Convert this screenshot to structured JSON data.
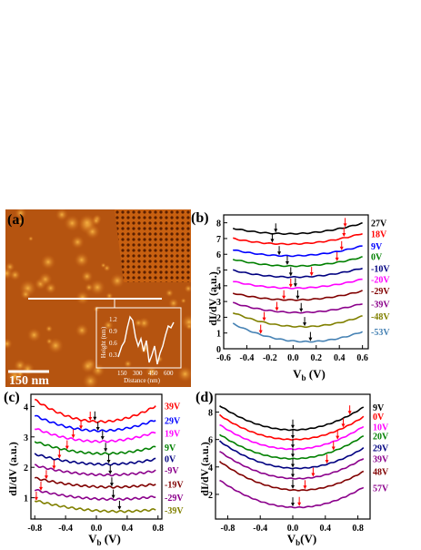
{
  "figure": {
    "panel_a": {
      "label": "(a)",
      "scale_bar": "150 nm",
      "inset_ylabel": "Height (nm)",
      "inset_xlabel": "Distance (nm)",
      "inset_yticks": [
        "1.2",
        "0.9",
        "0.6",
        "0.3"
      ],
      "inset_xticks": [
        "150",
        "300",
        "450",
        "600"
      ]
    },
    "panel_b": {
      "label": "(b)",
      "ylabel": "dI/dV (a.u.)",
      "xlabel": "V",
      "xlabel_sub": "b",
      "xlabel_unit": " (V)",
      "xticks": [
        "-0.6",
        "-0.4",
        "-0.2",
        "0.0",
        "0.2",
        "0.4",
        "0.6"
      ],
      "yticks": [
        "0",
        "1",
        "2",
        "3",
        "4",
        "5",
        "6",
        "7",
        "8"
      ]
    },
    "panel_c": {
      "label": "(c)",
      "ylabel": "dI/dV (a.u.)",
      "xlabel": "V",
      "xlabel_sub": "b",
      "xlabel_unit": " (V)",
      "xticks": [
        "-0.8",
        "-0.4",
        "0.0",
        "0.4",
        "0.8"
      ],
      "yticks": [
        "1",
        "2",
        "3",
        "4"
      ]
    },
    "panel_d": {
      "label": "(d)",
      "ylabel": "dI/dV (a.u.)",
      "xlabel": "V",
      "xlabel_sub": "b",
      "xlabel_unit": "(V)",
      "xticks": [
        "-0.8",
        "-0.4",
        "0.0",
        "0.4",
        "0.8"
      ],
      "yticks": [
        "2",
        "4",
        "6",
        "8"
      ]
    }
  },
  "chart_data": [
    {
      "panel": "b",
      "type": "line",
      "xlim": [
        -0.6,
        0.65
      ],
      "ylim": [
        0,
        8.5
      ],
      "series": [
        {
          "name": "27V",
          "color": "#000000",
          "offset": 7.3,
          "curv": 1.6,
          "x0": -0.05,
          "black": -0.15,
          "red": 0.45
        },
        {
          "name": "18V",
          "color": "#ff0000",
          "offset": 6.65,
          "curv": 1.6,
          "x0": -0.05,
          "black": -0.18,
          "red": 0.44
        },
        {
          "name": "9V",
          "color": "#0000ff",
          "offset": 5.9,
          "curv": 1.6,
          "x0": -0.03,
          "black": -0.12,
          "red": 0.42
        },
        {
          "name": "0V",
          "color": "#008000",
          "offset": 5.25,
          "curv": 1.6,
          "x0": 0.0,
          "black": -0.05,
          "red": 0.38
        },
        {
          "name": "-10V",
          "color": "#000080",
          "offset": 4.55,
          "curv": 1.6,
          "x0": 0.0,
          "black": -0.02,
          "red": 0.16
        },
        {
          "name": "-20V",
          "color": "#ff00ff",
          "offset": 3.85,
          "curv": 1.6,
          "x0": 0.0,
          "black": 0.02,
          "red": -0.02
        },
        {
          "name": "-29V",
          "color": "#800000",
          "offset": 3.1,
          "curv": 1.6,
          "x0": 0.0,
          "black": 0.04,
          "red": -0.08
        },
        {
          "name": "-39V",
          "color": "#8b008b",
          "offset": 2.3,
          "curv": 1.9,
          "x0": 0.05,
          "black": 0.07,
          "red": -0.14
        },
        {
          "name": "-48V",
          "color": "#808000",
          "offset": 1.4,
          "curv": 2.5,
          "x0": 0.08,
          "black": 0.1,
          "red": -0.25
        },
        {
          "name": "-53V",
          "color": "#4682b4",
          "offset": 0.45,
          "curv": 2.8,
          "x0": 0.12,
          "black": 0.15,
          "red": -0.28
        }
      ]
    },
    {
      "panel": "c",
      "type": "line",
      "xlim": [
        -0.85,
        0.85
      ],
      "ylim": [
        0.3,
        4.4
      ],
      "series": [
        {
          "name": "39V",
          "color": "#ff0000",
          "offset": 3.5,
          "curv": 1.0,
          "x0": 0.05,
          "black": -0.02,
          "red": -0.08
        },
        {
          "name": "29V",
          "color": "#0000ff",
          "offset": 3.2,
          "curv": 0.7,
          "x0": 0.05,
          "black": 0.02,
          "red": -0.2
        },
        {
          "name": "19V",
          "color": "#ff00ff",
          "offset": 2.85,
          "curv": 0.6,
          "x0": 0.05,
          "black": 0.08,
          "red": -0.3
        },
        {
          "name": "9V",
          "color": "#008000",
          "offset": 2.45,
          "curv": 0.5,
          "x0": 0.1,
          "black": 0.12,
          "red": -0.38
        },
        {
          "name": "0V",
          "color": "#000080",
          "offset": 2.1,
          "curv": 0.4,
          "x0": 0.12,
          "black": 0.16,
          "red": -0.48
        },
        {
          "name": "-9V",
          "color": "#8b008b",
          "offset": 1.75,
          "curv": 0.35,
          "x0": 0.15,
          "black": 0.18,
          "red": -0.55
        },
        {
          "name": "-19V",
          "color": "#800000",
          "offset": 1.35,
          "curv": 0.3,
          "x0": 0.2,
          "black": 0.2,
          "red": -0.65
        },
        {
          "name": "-29V",
          "color": "#8b008b",
          "offset": 0.95,
          "curv": 0.3,
          "x0": 0.22,
          "black": 0.22,
          "red": -0.72
        },
        {
          "name": "-39V",
          "color": "#808000",
          "offset": 0.55,
          "curv": 0.3,
          "x0": 0.3,
          "black": 0.3,
          "red": -0.78
        }
      ]
    },
    {
      "panel": "d",
      "type": "line",
      "xlim": [
        -0.95,
        0.95
      ],
      "ylim": [
        0.2,
        9.3
      ],
      "series": [
        {
          "name": "9V",
          "color": "#000000",
          "offset": 6.7,
          "curv": 2.2,
          "x0": 0.0,
          "black": 0.0,
          "red": 0.7
        },
        {
          "name": "0V",
          "color": "#ff0000",
          "offset": 6.0,
          "curv": 2.2,
          "x0": 0.0,
          "black": 0.0,
          "red": 0.62
        },
        {
          "name": "10V",
          "color": "#ff00ff",
          "offset": 5.3,
          "curv": 2.2,
          "x0": 0.0,
          "black": 0.0,
          "red": 0.55
        },
        {
          "name": "20V",
          "color": "#008000",
          "offset": 4.6,
          "curv": 2.2,
          "x0": 0.0,
          "black": 0.0,
          "red": 0.5
        },
        {
          "name": "29V",
          "color": "#000080",
          "offset": 3.9,
          "curv": 2.2,
          "x0": 0.05,
          "black": 0.0,
          "red": 0.42
        },
        {
          "name": "39V",
          "color": "#8b008b",
          "offset": 3.15,
          "curv": 2.2,
          "x0": 0.05,
          "black": 0.0,
          "red": 0.25
        },
        {
          "name": "48V",
          "color": "#800000",
          "offset": 2.3,
          "curv": 2.2,
          "x0": 0.08,
          "black": 0.0,
          "red": 0.15
        },
        {
          "name": "57V",
          "color": "#8b008b",
          "offset": 1.05,
          "curv": 2.2,
          "x0": 0.05,
          "black": 0.0,
          "red": 0.08
        }
      ]
    }
  ]
}
